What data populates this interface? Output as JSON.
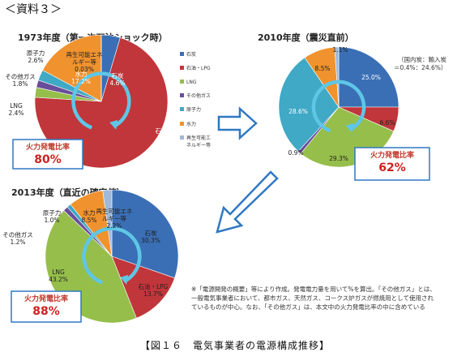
{
  "header": "＜資料３＞",
  "colors": {
    "coal": "#3a6fb5",
    "oil": "#c0363a",
    "lng": "#96be4b",
    "other_gas": "#6a4d9a",
    "nuclear": "#3fa9c6",
    "hydro": "#f0922e",
    "renewable": "#9fb9d8",
    "arrow": "#2f78c4",
    "frame": "#2f78c4"
  },
  "legend": [
    {
      "label": "石炭",
      "color_key": "coal"
    },
    {
      "label": "石油・LPG",
      "color_key": "oil"
    },
    {
      "label": "LNG",
      "color_key": "lng"
    },
    {
      "label": "その他ガス",
      "color_key": "other_gas"
    },
    {
      "label": "原子力",
      "color_key": "nuclear"
    },
    {
      "label": "水力",
      "color_key": "hydro"
    },
    {
      "label": "再生可能エネルギー等",
      "color_key": "renewable"
    }
  ],
  "chart_data": [
    {
      "type": "pie",
      "title": "1973年度（第一次石油ショック時）",
      "slices": [
        {
          "name": "石炭",
          "value": 4.6,
          "label": "石炭\n4.6%"
        },
        {
          "name": "石油・LPG",
          "value": 71.4,
          "label": "石油・LPG\n71.4%"
        },
        {
          "name": "LNG",
          "value": 2.4,
          "label": "LNG\n2.4%"
        },
        {
          "name": "その他ガス",
          "value": 1.8,
          "label": "その他ガス\n1.8%"
        },
        {
          "name": "原子力",
          "value": 2.6,
          "label": "原子力\n2.6%"
        },
        {
          "name": "水力",
          "value": 17.2,
          "label": "水力\n17.2%"
        },
        {
          "name": "再生可能エネルギー等",
          "value": 0.03,
          "label": "再生可能エネ\nルギー等\n0.03%"
        }
      ],
      "thermal_ratio_label": "火力発電比率",
      "thermal_ratio": "80%"
    },
    {
      "type": "pie",
      "title": "2010年度（震災直前）",
      "slices": [
        {
          "name": "石炭",
          "value": 25.0,
          "label": "25.0%"
        },
        {
          "name": "石油・LPG",
          "value": 6.6,
          "label": "6.6%"
        },
        {
          "name": "LNG",
          "value": 29.3,
          "label": "29.3%"
        },
        {
          "name": "その他ガス",
          "value": 0.9,
          "label": "0.9%"
        },
        {
          "name": "原子力",
          "value": 28.6,
          "label": "28.6%"
        },
        {
          "name": "水力",
          "value": 8.5,
          "label": "8.5%"
        },
        {
          "name": "再生可能エネルギー等",
          "value": 1.1,
          "label": "1.1%"
        }
      ],
      "annotation": "（国内炭：輸入炭\n＝0.4%：24.6%）",
      "thermal_ratio_label": "火力発電比率",
      "thermal_ratio": "62%"
    },
    {
      "type": "pie",
      "title": "2013年度（直近の確定値）",
      "slices": [
        {
          "name": "石炭",
          "value": 30.3,
          "label": "石炭\n30.3%"
        },
        {
          "name": "石油・LPG",
          "value": 13.7,
          "label": "石油・LPG\n13.7%"
        },
        {
          "name": "LNG",
          "value": 43.2,
          "label": "LNG\n43.2%"
        },
        {
          "name": "その他ガス",
          "value": 1.2,
          "label": "その他ガス\n1.2%"
        },
        {
          "name": "原子力",
          "value": 1.0,
          "label": "原子力\n1.0%"
        },
        {
          "name": "水力",
          "value": 8.5,
          "label": "水力\n8.5%"
        },
        {
          "name": "再生可能エネルギー等",
          "value": 2.2,
          "label": "再生可能エネ\nルギー等\n2.2%"
        }
      ],
      "thermal_ratio_label": "火力発電比率",
      "thermal_ratio": "88%"
    }
  ],
  "note": "※「電源開発の概要」等により作成。発電電力量を用いて%を算出。「その他ガス」とは、\n一般電気事業者において、都市ガス、天然ガス、コークス炉ガスが燃焼用として使用され\nているものが中心。なお、「その他ガス」は、本文中の火力発電比率の中に含めている",
  "caption": "【図１６　電気事業者の電源構成推移】"
}
